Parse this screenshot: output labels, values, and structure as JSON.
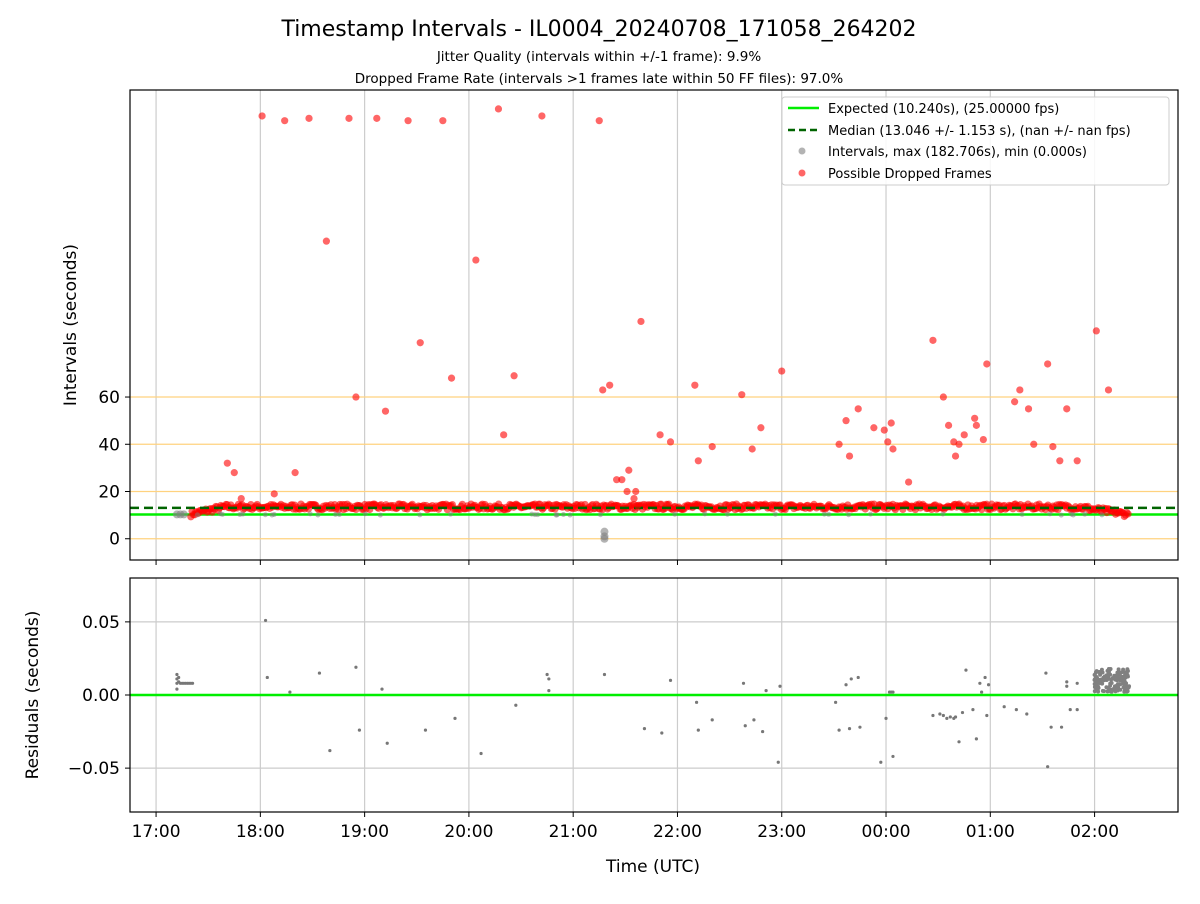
{
  "title": "Timestamp Intervals - IL0004_20240708_171058_264202",
  "subtitle1": "Jitter Quality (intervals within +/-1 frame): 9.9%",
  "subtitle2": "Dropped Frame Rate (intervals >1 frames late within 50 FF files): 97.0%",
  "colors": {
    "expected": "#00ee00",
    "median": "#006400",
    "intervals": "#808080",
    "dropped": "#ff0000",
    "threshold_lines": "#ffd27f",
    "grid": "#cccccc"
  },
  "chart_data": [
    {
      "type": "scatter",
      "ylabel": "Intervals (seconds)",
      "xlabel": "",
      "ylim": [
        -9,
        190
      ],
      "y_ticks": [
        0,
        20,
        40,
        60
      ],
      "hlines_orange": [
        0,
        20,
        40,
        60
      ],
      "expected_line": 10.24,
      "median_line": 13.046,
      "x_range_hours": [
        16.75,
        26.8
      ],
      "x_ticks": [
        "17:00",
        "18:00",
        "19:00",
        "20:00",
        "21:00",
        "22:00",
        "23:00",
        "00:00",
        "01:00",
        "02:00"
      ],
      "grid": "vertical",
      "legend_position": "top-right",
      "legend": [
        "Expected (10.240s), (25.00000 fps)",
        "Median (13.046 +/- 1.153 s), (nan +/- nan fps)",
        "Intervals, max (182.706s), min (0.000s)",
        "Possible Dropped Frames"
      ],
      "baseline_band": {
        "start": "17:20",
        "end": "02:20",
        "start_value": 10.5,
        "plateau_value": 13.5,
        "ramp_end": "17:40",
        "end_ramp_start": "01:50",
        "end_value": 10.3
      },
      "dropped_points": [
        [
          "18:01",
          179
        ],
        [
          "18:14",
          177
        ],
        [
          "18:28",
          178
        ],
        [
          "18:51",
          178
        ],
        [
          "19:07",
          178
        ],
        [
          "19:25",
          177
        ],
        [
          "19:45",
          177
        ],
        [
          "20:17",
          182
        ],
        [
          "20:42",
          179
        ],
        [
          "21:15",
          177
        ],
        [
          "18:38",
          126
        ],
        [
          "20:04",
          118
        ],
        [
          "21:39",
          92
        ],
        [
          "19:32",
          83
        ],
        [
          "19:50",
          68
        ],
        [
          "20:26",
          69
        ],
        [
          "18:55",
          60
        ],
        [
          "19:12",
          54
        ],
        [
          "20:20",
          44
        ],
        [
          "17:41",
          32
        ],
        [
          "17:45",
          28
        ],
        [
          "18:20",
          28
        ],
        [
          "17:49",
          17
        ],
        [
          "18:08",
          19
        ],
        [
          "21:17",
          63
        ],
        [
          "21:21",
          65
        ],
        [
          "21:25",
          25
        ],
        [
          "21:28",
          25
        ],
        [
          "21:31",
          20
        ],
        [
          "21:32",
          29
        ],
        [
          "21:36",
          20
        ],
        [
          "21:35",
          17
        ],
        [
          "21:37",
          14
        ],
        [
          "21:50",
          44
        ],
        [
          "21:56",
          41
        ],
        [
          "22:10",
          65
        ],
        [
          "22:12",
          33
        ],
        [
          "22:20",
          39
        ],
        [
          "22:37",
          61
        ],
        [
          "22:43",
          38
        ],
        [
          "22:48",
          47
        ],
        [
          "23:00",
          71
        ],
        [
          "23:33",
          40
        ],
        [
          "23:37",
          50
        ],
        [
          "23:39",
          35
        ],
        [
          "23:44",
          55
        ],
        [
          "23:53",
          47
        ],
        [
          "23:59",
          46
        ],
        [
          "00:01",
          41
        ],
        [
          "00:03",
          49
        ],
        [
          "00:04",
          38
        ],
        [
          "00:13",
          24
        ],
        [
          "00:27",
          84
        ],
        [
          "00:33",
          60
        ],
        [
          "00:36",
          48
        ],
        [
          "00:39",
          41
        ],
        [
          "00:40",
          35
        ],
        [
          "00:42",
          40
        ],
        [
          "00:45",
          44
        ],
        [
          "00:51",
          51
        ],
        [
          "00:52",
          48
        ],
        [
          "00:56",
          42
        ],
        [
          "00:58",
          74
        ],
        [
          "01:14",
          58
        ],
        [
          "01:17",
          63
        ],
        [
          "01:22",
          55
        ],
        [
          "01:25",
          40
        ],
        [
          "01:33",
          74
        ],
        [
          "01:36",
          39
        ],
        [
          "01:40",
          33
        ],
        [
          "01:44",
          55
        ],
        [
          "01:50",
          33
        ],
        [
          "02:01",
          88
        ],
        [
          "02:08",
          63
        ]
      ],
      "gray_points": [
        [
          "21:18",
          0
        ],
        [
          "21:18",
          1
        ],
        [
          "21:18",
          3
        ],
        [
          "17:12",
          10.3
        ],
        [
          "17:14",
          10.3
        ],
        [
          "17:16",
          10.3
        ]
      ]
    },
    {
      "type": "scatter",
      "ylabel": "Residuals (seconds)",
      "xlabel": "Time (UTC)",
      "ylim": [
        -0.08,
        0.08
      ],
      "y_ticks": [
        0.05,
        0.0,
        -0.05
      ],
      "y_tick_labels": [
        "0.05",
        "0.00",
        "−0.05"
      ],
      "zero_line": 0,
      "grid": "both",
      "x_range_hours": [
        16.75,
        26.8
      ],
      "x_ticks": [
        "17:00",
        "18:00",
        "19:00",
        "20:00",
        "21:00",
        "22:00",
        "23:00",
        "00:00",
        "01:00",
        "02:00"
      ],
      "points": [
        [
          "17:12",
          0.014
        ],
        [
          "17:12",
          0.011
        ],
        [
          "17:12",
          0.008
        ],
        [
          "17:12",
          0.004
        ],
        [
          "17:13",
          0.012
        ],
        [
          "17:13",
          0.009
        ],
        [
          "17:14",
          0.008
        ],
        [
          "17:15",
          0.008
        ],
        [
          "17:16",
          0.008
        ],
        [
          "17:17",
          0.008
        ],
        [
          "17:18",
          0.008
        ],
        [
          "17:19",
          0.008
        ],
        [
          "17:20",
          0.008
        ],
        [
          "17:21",
          0.008
        ],
        [
          "18:03",
          0.051
        ],
        [
          "18:04",
          0.012
        ],
        [
          "18:17",
          0.002
        ],
        [
          "18:34",
          0.015
        ],
        [
          "18:40",
          -0.038
        ],
        [
          "18:55",
          0.019
        ],
        [
          "18:57",
          -0.024
        ],
        [
          "19:10",
          0.004
        ],
        [
          "19:13",
          -0.033
        ],
        [
          "19:35",
          -0.024
        ],
        [
          "19:52",
          -0.016
        ],
        [
          "20:07",
          -0.04
        ],
        [
          "20:27",
          -0.007
        ],
        [
          "20:45",
          0.014
        ],
        [
          "20:46",
          0.011
        ],
        [
          "20:46",
          0.003
        ],
        [
          "21:18",
          0.014
        ],
        [
          "21:41",
          -0.023
        ],
        [
          "21:51",
          -0.026
        ],
        [
          "21:56",
          0.01
        ],
        [
          "22:11",
          -0.005
        ],
        [
          "22:12",
          -0.024
        ],
        [
          "22:20",
          -0.017
        ],
        [
          "22:38",
          0.008
        ],
        [
          "22:39",
          -0.021
        ],
        [
          "22:44",
          -0.017
        ],
        [
          "22:49",
          -0.025
        ],
        [
          "22:51",
          0.003
        ],
        [
          "22:58",
          -0.046
        ],
        [
          "22:59",
          0.006
        ],
        [
          "23:31",
          -0.005
        ],
        [
          "23:33",
          -0.024
        ],
        [
          "23:37",
          0.007
        ],
        [
          "23:39",
          -0.023
        ],
        [
          "23:40",
          0.011
        ],
        [
          "23:44",
          0.012
        ],
        [
          "23:45",
          -0.022
        ],
        [
          "23:57",
          -0.046
        ],
        [
          "00:00",
          -0.016
        ],
        [
          "00:02",
          0.002
        ],
        [
          "00:03",
          0.002
        ],
        [
          "00:04",
          -0.042
        ],
        [
          "00:04",
          0.002
        ],
        [
          "00:27",
          -0.014
        ],
        [
          "00:31",
          -0.013
        ],
        [
          "00:33",
          -0.014
        ],
        [
          "00:35",
          -0.016
        ],
        [
          "00:37",
          -0.015
        ],
        [
          "00:39",
          -0.016
        ],
        [
          "00:40",
          -0.015
        ],
        [
          "00:42",
          -0.032
        ],
        [
          "00:44",
          -0.012
        ],
        [
          "00:46",
          0.017
        ],
        [
          "00:50",
          -0.01
        ],
        [
          "00:52",
          -0.03
        ],
        [
          "00:54",
          0.008
        ],
        [
          "00:55",
          0.002
        ],
        [
          "00:57",
          0.012
        ],
        [
          "00:58",
          -0.014
        ],
        [
          "00:59",
          0.007
        ],
        [
          "01:08",
          -0.008
        ],
        [
          "01:15",
          -0.01
        ],
        [
          "01:21",
          -0.013
        ],
        [
          "01:32",
          0.015
        ],
        [
          "01:33",
          -0.049
        ],
        [
          "01:35",
          -0.022
        ],
        [
          "01:41",
          -0.022
        ],
        [
          "01:44",
          0.009
        ],
        [
          "01:44",
          0.006
        ],
        [
          "01:46",
          -0.01
        ],
        [
          "01:50",
          -0.01
        ],
        [
          "01:50",
          0.008
        ]
      ],
      "dense_cluster": {
        "start": "02:00",
        "end": "02:20",
        "min": 0.002,
        "max": 0.018
      }
    }
  ]
}
